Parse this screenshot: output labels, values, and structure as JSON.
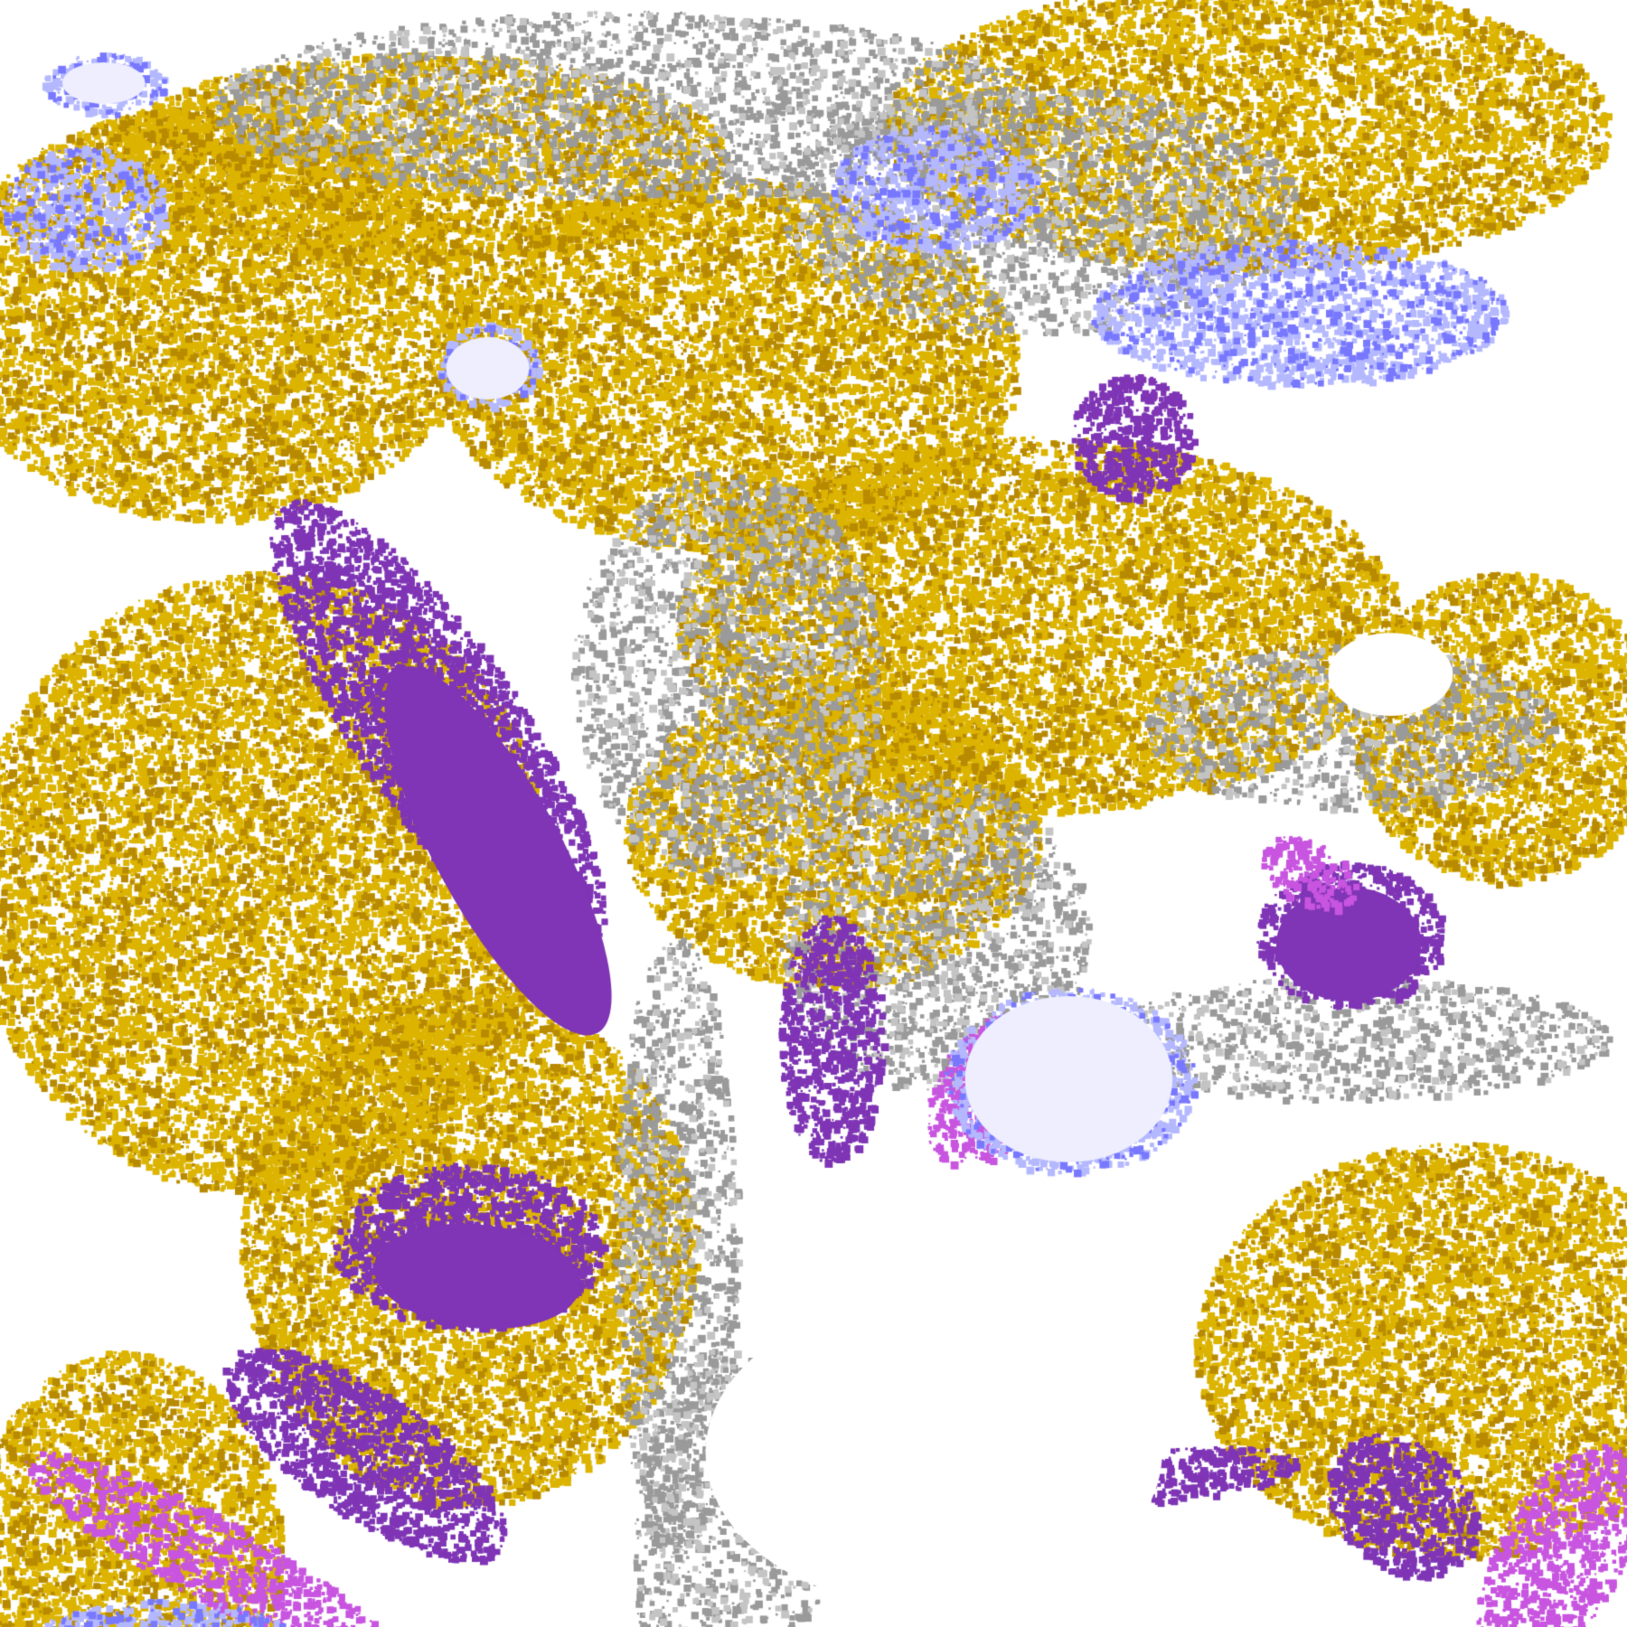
{
  "map": {
    "type": "satellite cloud classification",
    "palette": {
      "clear": "#ffffff",
      "gold": "#dcb400",
      "dark_gold": "#b88a00",
      "gray": "#9a9a9a",
      "light_gray": "#c4c4c4",
      "purple": "#7f35b5",
      "magenta": "#c855e0",
      "blue": "#7878ff",
      "light_blue": "#b4b8ff",
      "lavender": "#eeeeff"
    }
  }
}
